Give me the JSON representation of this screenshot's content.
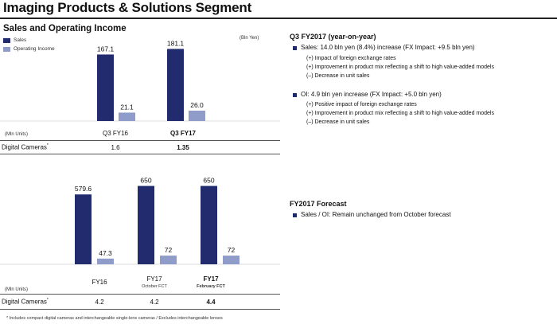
{
  "page": {
    "title": "Imaging Products & Solutions Segment",
    "section_title": "Sales and Operating Income",
    "unit_top": "(Bln Yen)",
    "footnote": "* Includes compact digital cameras and interchangeable single-lens cameras / Excludes interchangeable lenses"
  },
  "legend": {
    "sales": "Sales",
    "operating_income": "Operating Income"
  },
  "colors": {
    "sales": "#232b6f",
    "operating_income": "#8f9bc9",
    "bullet": "#1f2a6b"
  },
  "table_top": {
    "units_label": "(Mln Units)",
    "col1": "Q3 FY16",
    "col2": "Q3 FY17",
    "row_label": "Digital Cameras",
    "row_mark": "*",
    "val1": "1.6",
    "val2": "1.35"
  },
  "table_bottom": {
    "units_label": "(Mln Units)",
    "col1": "FY16",
    "col2": "FY17",
    "col2_sub": "October FCT",
    "col3": "FY17",
    "col3_sub": "February FCT",
    "row_label": "Digital Cameras",
    "row_mark": "*",
    "val1": "4.2",
    "val2": "4.2",
    "val3": "4.4"
  },
  "chart_data": [
    {
      "type": "bar",
      "categories": [
        "Q3 FY16",
        "Q3 FY17"
      ],
      "series": [
        {
          "name": "Sales",
          "values": [
            167.1,
            181.1
          ],
          "labels": [
            "167.1",
            "181.1"
          ]
        },
        {
          "name": "Operating Income",
          "values": [
            21.1,
            26.0
          ],
          "labels": [
            "21.1",
            "26.0"
          ]
        }
      ],
      "ylim": [
        0,
        200
      ]
    },
    {
      "type": "bar",
      "categories": [
        "FY16",
        "FY17 October FCT",
        "FY17 February FCT"
      ],
      "series": [
        {
          "name": "Sales",
          "values": [
            579.6,
            650,
            650
          ],
          "labels": [
            "579.6",
            "650",
            "650"
          ]
        },
        {
          "name": "Operating Income",
          "values": [
            47.3,
            72,
            72
          ],
          "labels": [
            "47.3",
            "72",
            "72"
          ]
        }
      ],
      "ylim": [
        0,
        700
      ]
    }
  ],
  "right": {
    "q3_heading": "Q3 FY2017 (year-on-year)",
    "sales_bullet": "Sales: 14.0 bln yen (8.4%) increase (FX Impact: +9.5 bln yen)",
    "sales_sub": [
      "(+) Impact of foreign exchange rates",
      "(+) Improvement in product mix reflecting a shift to high value-added models",
      "(–) Decrease in unit sales"
    ],
    "oi_bullet": "OI: 4.9 bln yen increase (FX Impact: +5.0 bln yen)",
    "oi_sub": [
      "(+) Positive impact of foreign exchange rates",
      "(+) Improvement in product mix reflecting a shift to high value-added models",
      "(–) Decrease in unit sales"
    ],
    "forecast_heading": "FY2017 Forecast",
    "forecast_bullet": "Sales / OI: Remain unchanged from October forecast"
  }
}
